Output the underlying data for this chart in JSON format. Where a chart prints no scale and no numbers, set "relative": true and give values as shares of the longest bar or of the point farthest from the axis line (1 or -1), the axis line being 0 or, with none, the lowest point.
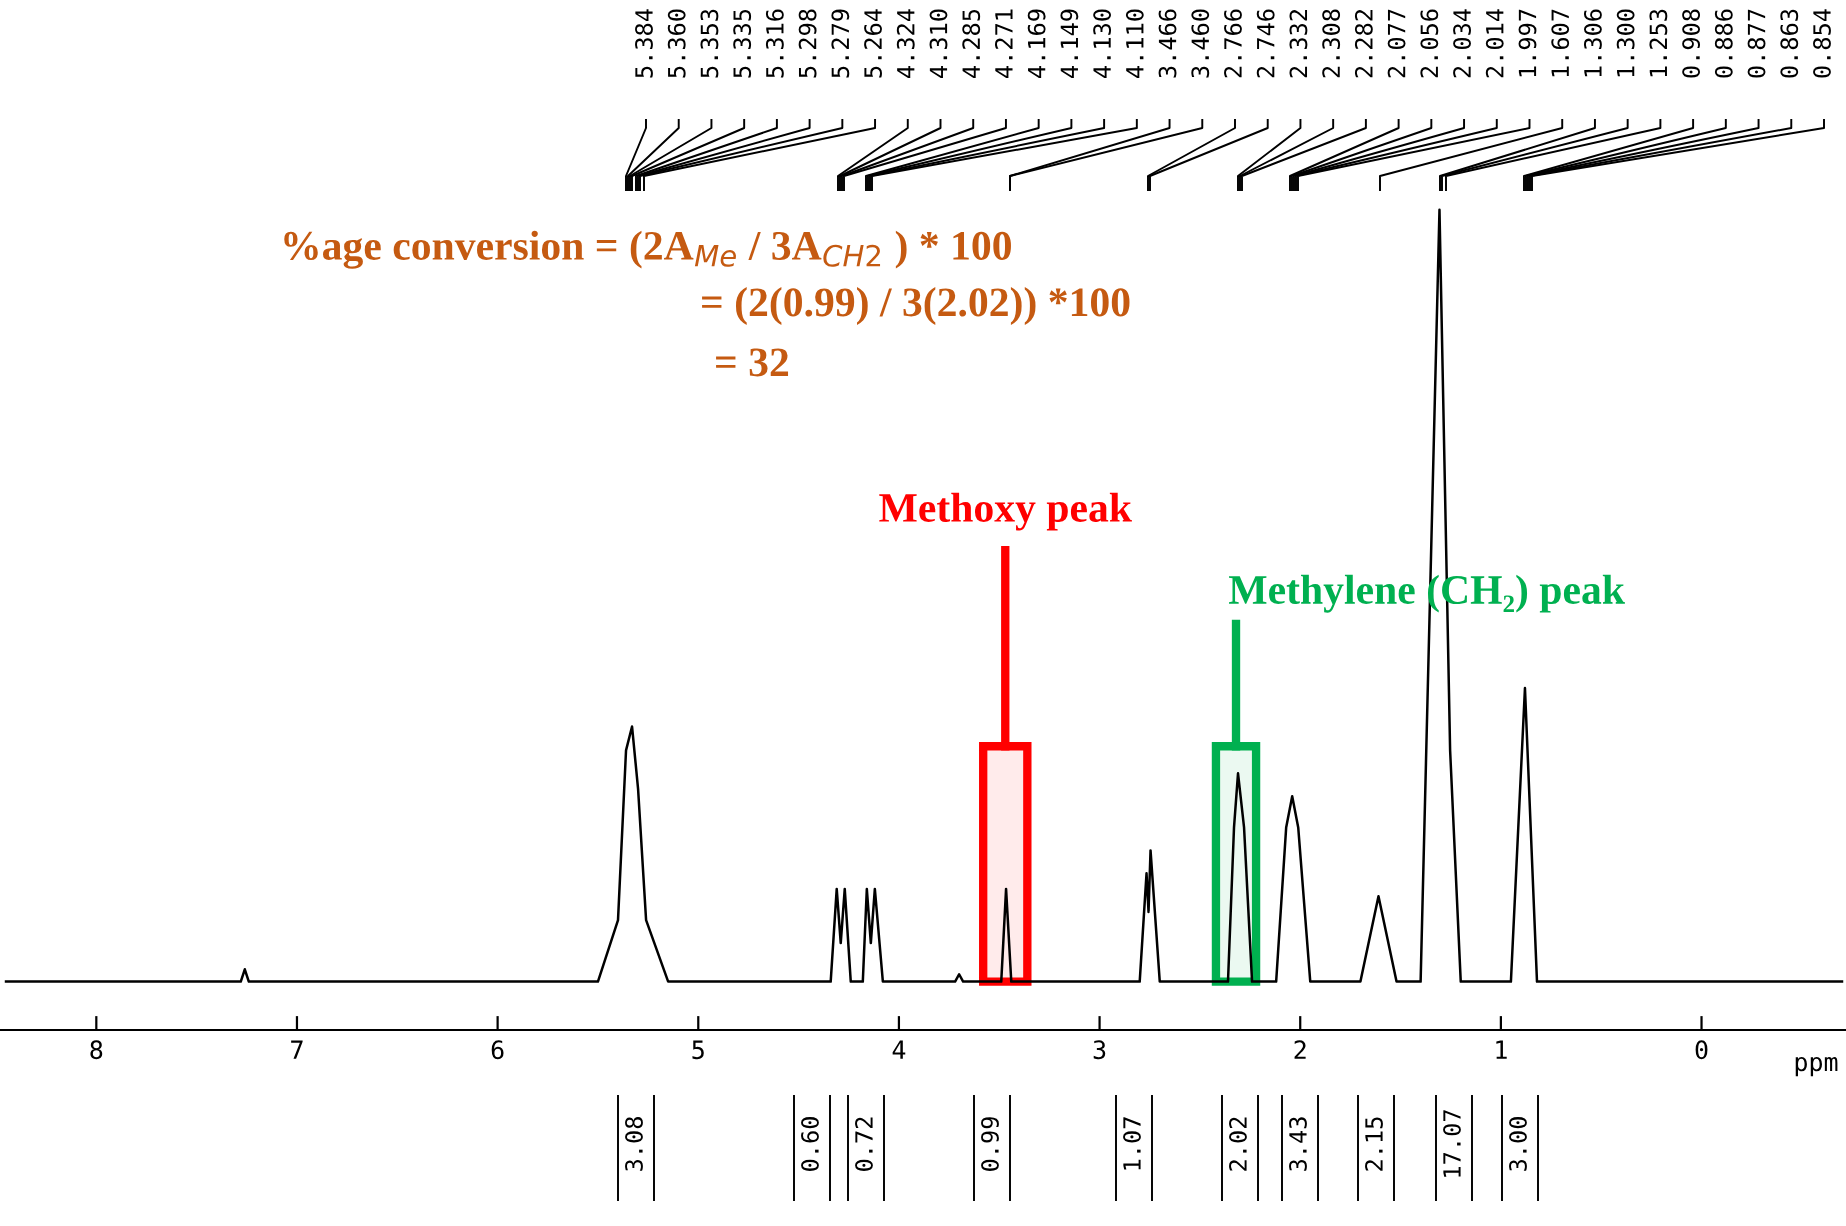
{
  "chart_data": {
    "type": "line",
    "relative": true,
    "xlabel": "ppm",
    "xlim": [
      8.48,
      -0.72
    ],
    "xticks": [
      8,
      7,
      6,
      5,
      4,
      3,
      2,
      1,
      0
    ],
    "grid": false,
    "legend": false,
    "series": [
      {
        "color": "#000000",
        "x": [
          8.45,
          7.28,
          7.26,
          7.24,
          5.5,
          5.4,
          5.36,
          5.33,
          5.3,
          5.26,
          5.15,
          4.34,
          4.31,
          4.29,
          4.27,
          4.24,
          4.18,
          4.16,
          4.14,
          4.12,
          4.08,
          3.72,
          3.7,
          3.68,
          3.49,
          3.466,
          3.44,
          2.8,
          2.766,
          2.756,
          2.746,
          2.7,
          2.36,
          2.33,
          2.31,
          2.28,
          2.24,
          2.12,
          2.07,
          2.04,
          2.01,
          1.95,
          1.7,
          1.61,
          1.52,
          1.4,
          1.306,
          1.253,
          1.2,
          0.95,
          0.88,
          0.82,
          -0.7
        ],
        "values": [
          0.059,
          0.059,
          0.074,
          0.059,
          0.059,
          0.134,
          0.341,
          0.37,
          0.294,
          0.134,
          0.059,
          0.059,
          0.172,
          0.106,
          0.172,
          0.059,
          0.059,
          0.172,
          0.106,
          0.172,
          0.059,
          0.059,
          0.068,
          0.059,
          0.059,
          0.172,
          0.059,
          0.059,
          0.191,
          0.144,
          0.219,
          0.059,
          0.059,
          0.247,
          0.313,
          0.247,
          0.059,
          0.059,
          0.247,
          0.285,
          0.247,
          0.059,
          0.059,
          0.163,
          0.059,
          0.059,
          1.0,
          0.341,
          0.059,
          0.059,
          0.417,
          0.059,
          0.059
        ]
      }
    ],
    "bands": [
      {
        "axis": "x",
        "from": 3.58,
        "to": 3.36,
        "label": "Methoxy peak",
        "color": "#ff0000"
      },
      {
        "axis": "x",
        "from": 2.42,
        "to": 2.22,
        "label": "Methylene (CH₂) peak",
        "color": "#00b050"
      }
    ],
    "annotations": [
      "%age conversion = (2A$_{Me}$ / 3A$_{CH2}$ ) * 100",
      "= (2(0.99) / 3(2.02)) *100",
      "= 32",
      "5.384",
      "5.360",
      "5.353",
      "5.335",
      "5.316",
      "5.298",
      "5.279",
      "5.264",
      "4.324",
      "4.310",
      "4.285",
      "4.271",
      "4.169",
      "4.149",
      "4.130",
      "4.110",
      "3.466",
      "3.460",
      "2.766",
      "2.746",
      "2.332",
      "2.308",
      "2.282",
      "2.077",
      "2.056",
      "2.034",
      "2.014",
      "1.997",
      "1.607",
      "1.306",
      "1.300",
      "1.253",
      "0.908",
      "0.886",
      "0.877",
      "0.863",
      "0.854",
      "3.08",
      "0.60",
      "0.72",
      "0.99",
      "1.07",
      "2.02",
      "3.43",
      "2.15",
      "17.07",
      "3.00"
    ]
  }
}
